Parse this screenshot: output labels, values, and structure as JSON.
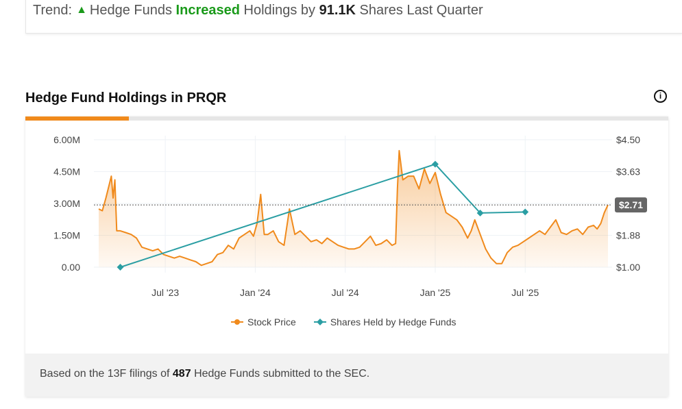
{
  "trend": {
    "prefix": "Trend:",
    "icon": "triangle-up-icon",
    "subject": "Hedge Funds",
    "direction": "Increased",
    "middle": "Holdings by",
    "amount": "91.1K",
    "suffix": "Shares Last Quarter"
  },
  "title": "Hedge Fund Holdings in PRQR",
  "info_icon": "info-icon",
  "footer": {
    "prefix": "Based on the 13F filings of",
    "count": "487",
    "suffix": "Hedge Funds submitted to the SEC."
  },
  "colors": {
    "accent": "#f08a1c",
    "price": "#f08a1c",
    "holdings": "#2a9ea3",
    "increase": "#1a9a1a"
  },
  "chart_data": {
    "type": "line",
    "title": "Hedge Fund Holdings in PRQR",
    "x_ticks": [
      "Jul '23",
      "Jan '24",
      "Jul '24",
      "Jan '25",
      "Jul '25"
    ],
    "x_tick_dates": [
      2023.5,
      2024.0,
      2024.5,
      2025.0,
      2025.5
    ],
    "x_range": [
      2023.13,
      2025.96
    ],
    "y_left": {
      "label": "Shares Held",
      "ticks": [
        "0.00",
        "1.50M",
        "3.00M",
        "4.50M",
        "6.00M"
      ],
      "range": [
        0,
        6000000
      ]
    },
    "y_right": {
      "label": "Stock Price",
      "ticks": [
        "$1.00",
        "$1.88",
        "$2.75",
        "$3.63",
        "$4.50"
      ],
      "range": [
        1.0,
        4.5
      ]
    },
    "reference_line": {
      "value": 2.71,
      "label": "$2.71"
    },
    "grid": true,
    "legend": {
      "position": "bottom",
      "entries": [
        "Stock Price",
        "Shares Held by Hedge Funds"
      ]
    },
    "series": [
      {
        "name": "Shares Held by Hedge Funds",
        "axis": "left",
        "x": [
          2023.25,
          2025.0,
          2025.25,
          2025.5
        ],
        "values": [
          0,
          4850000,
          2550000,
          2600000
        ]
      },
      {
        "name": "Stock Price",
        "axis": "right",
        "x": [
          2023.13,
          2023.15,
          2023.17,
          2023.19,
          2023.2,
          2023.21,
          2023.22,
          2023.23,
          2023.25,
          2023.28,
          2023.31,
          2023.34,
          2023.37,
          2023.4,
          2023.43,
          2023.46,
          2023.49,
          2023.52,
          2023.55,
          2023.58,
          2023.61,
          2023.64,
          2023.67,
          2023.7,
          2023.73,
          2023.76,
          2023.79,
          2023.82,
          2023.85,
          2023.88,
          2023.91,
          2023.94,
          2023.97,
          2023.99,
          2024.01,
          2024.03,
          2024.05,
          2024.07,
          2024.1,
          2024.13,
          2024.16,
          2024.19,
          2024.22,
          2024.25,
          2024.28,
          2024.31,
          2024.34,
          2024.37,
          2024.4,
          2024.43,
          2024.46,
          2024.49,
          2024.52,
          2024.55,
          2024.58,
          2024.61,
          2024.64,
          2024.67,
          2024.7,
          2024.73,
          2024.76,
          2024.78,
          2024.79,
          2024.8,
          2024.82,
          2024.85,
          2024.88,
          2024.91,
          2024.94,
          2024.97,
          2025.0,
          2025.03,
          2025.06,
          2025.09,
          2025.12,
          2025.15,
          2025.18,
          2025.2,
          2025.22,
          2025.25,
          2025.28,
          2025.31,
          2025.34,
          2025.37,
          2025.4,
          2025.43,
          2025.46,
          2025.49,
          2025.52,
          2025.55,
          2025.58,
          2025.61,
          2025.64,
          2025.67,
          2025.7,
          2025.73,
          2025.76,
          2025.79,
          2025.82,
          2025.85,
          2025.88,
          2025.9,
          2025.92,
          2025.94,
          2025.96
        ],
        "values": [
          2.6,
          2.55,
          2.9,
          3.3,
          3.5,
          2.9,
          3.4,
          2.0,
          2.0,
          1.95,
          1.9,
          1.8,
          1.55,
          1.5,
          1.45,
          1.5,
          1.35,
          1.3,
          1.25,
          1.3,
          1.25,
          1.2,
          1.15,
          1.05,
          1.1,
          1.15,
          1.35,
          1.4,
          1.6,
          1.5,
          1.8,
          1.9,
          2.0,
          1.85,
          2.2,
          3.0,
          1.9,
          1.9,
          2.0,
          1.7,
          1.6,
          2.6,
          1.9,
          2.0,
          1.85,
          1.7,
          1.75,
          1.65,
          1.8,
          1.7,
          1.6,
          1.55,
          1.5,
          1.5,
          1.55,
          1.7,
          1.85,
          1.6,
          1.65,
          1.75,
          1.6,
          1.65,
          3.15,
          4.2,
          3.4,
          3.5,
          3.5,
          3.15,
          3.7,
          3.3,
          3.6,
          3.0,
          2.5,
          2.4,
          2.3,
          2.1,
          1.8,
          2.0,
          2.3,
          1.9,
          1.5,
          1.25,
          1.1,
          1.1,
          1.4,
          1.55,
          1.6,
          1.7,
          1.8,
          1.9,
          2.0,
          1.9,
          2.1,
          2.3,
          1.95,
          1.9,
          2.0,
          2.05,
          1.9,
          2.1,
          2.15,
          2.05,
          2.2,
          2.5,
          2.71
        ]
      }
    ]
  }
}
